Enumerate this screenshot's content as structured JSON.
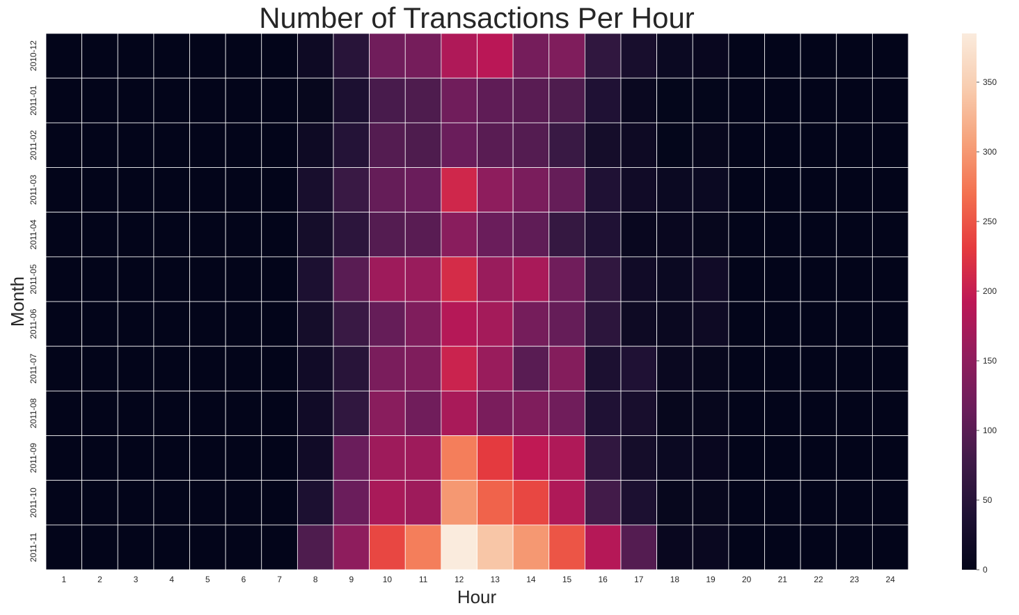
{
  "chart_data": {
    "type": "heatmap",
    "title": "Number of Transactions Per Hour",
    "xlabel": "Hour",
    "ylabel": "Month",
    "x": [
      "1",
      "2",
      "3",
      "4",
      "5",
      "6",
      "7",
      "8",
      "9",
      "10",
      "11",
      "12",
      "13",
      "14",
      "15",
      "16",
      "17",
      "18",
      "19",
      "20",
      "21",
      "22",
      "23",
      "24"
    ],
    "y": [
      "2010-12",
      "2011-01",
      "2011-02",
      "2011-03",
      "2011-04",
      "2011-05",
      "2011-06",
      "2011-07",
      "2011-08",
      "2011-09",
      "2011-10",
      "2011-11"
    ],
    "values": [
      [
        0,
        0,
        0,
        0,
        0,
        0,
        0,
        15,
        50,
        120,
        125,
        180,
        190,
        125,
        135,
        60,
        30,
        12,
        8,
        0,
        0,
        0,
        0,
        0
      ],
      [
        0,
        0,
        0,
        0,
        0,
        0,
        0,
        5,
        35,
        85,
        90,
        120,
        105,
        100,
        90,
        40,
        10,
        2,
        2,
        0,
        0,
        0,
        0,
        0
      ],
      [
        0,
        0,
        0,
        0,
        0,
        0,
        0,
        15,
        45,
        95,
        90,
        115,
        100,
        95,
        70,
        25,
        15,
        2,
        5,
        0,
        0,
        0,
        0,
        0
      ],
      [
        0,
        0,
        0,
        0,
        0,
        0,
        0,
        30,
        70,
        110,
        115,
        210,
        150,
        130,
        110,
        40,
        20,
        12,
        12,
        0,
        0,
        0,
        0,
        0
      ],
      [
        0,
        0,
        0,
        0,
        0,
        0,
        0,
        25,
        55,
        95,
        100,
        145,
        115,
        105,
        65,
        40,
        8,
        8,
        5,
        0,
        0,
        0,
        0,
        0
      ],
      [
        0,
        0,
        0,
        0,
        0,
        0,
        0,
        35,
        100,
        165,
        160,
        215,
        160,
        175,
        120,
        60,
        20,
        12,
        20,
        0,
        0,
        0,
        0,
        0
      ],
      [
        0,
        0,
        0,
        0,
        0,
        0,
        0,
        25,
        70,
        110,
        135,
        185,
        170,
        125,
        110,
        55,
        15,
        10,
        15,
        0,
        0,
        0,
        0,
        0
      ],
      [
        0,
        0,
        0,
        0,
        0,
        0,
        0,
        20,
        50,
        130,
        135,
        205,
        160,
        100,
        140,
        35,
        40,
        10,
        5,
        0,
        0,
        0,
        0,
        0
      ],
      [
        0,
        0,
        0,
        0,
        0,
        0,
        0,
        20,
        60,
        145,
        120,
        175,
        130,
        135,
        120,
        40,
        30,
        5,
        5,
        0,
        0,
        0,
        0,
        0
      ],
      [
        0,
        0,
        0,
        0,
        0,
        0,
        0,
        20,
        115,
        165,
        165,
        280,
        230,
        195,
        180,
        60,
        25,
        12,
        8,
        0,
        0,
        0,
        0,
        0
      ],
      [
        0,
        0,
        0,
        0,
        0,
        0,
        0,
        35,
        115,
        175,
        165,
        300,
        260,
        240,
        180,
        80,
        35,
        5,
        5,
        0,
        0,
        0,
        0,
        0
      ],
      [
        0,
        0,
        0,
        0,
        0,
        0,
        0,
        90,
        150,
        240,
        280,
        385,
        340,
        300,
        250,
        185,
        95,
        8,
        10,
        0,
        0,
        0,
        0,
        0
      ]
    ],
    "colorbar": {
      "min": 0,
      "max": 385,
      "ticks": [
        0,
        50,
        100,
        150,
        200,
        250,
        300,
        350
      ]
    },
    "colormap": [
      "#03051a",
      "#1e1133",
      "#3f1b48",
      "#6b1d5b",
      "#921d5d",
      "#bd1756",
      "#e53b3e",
      "#f3704f",
      "#f6a27b",
      "#f8cdb0",
      "#faebdd"
    ],
    "gridline_color": "#ffffff"
  }
}
